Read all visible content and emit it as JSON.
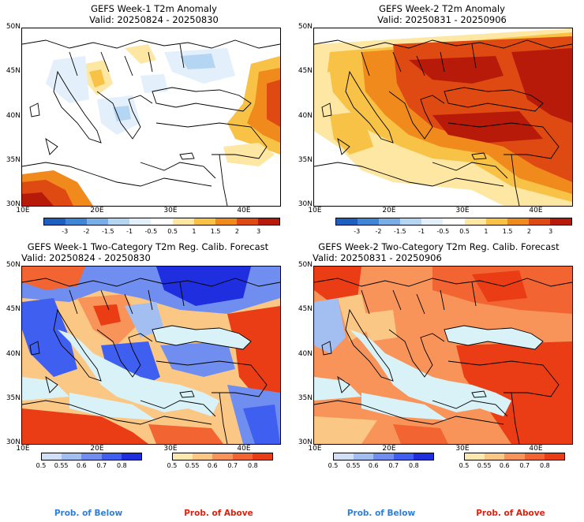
{
  "panels": [
    {
      "title": "GEFS Week-1 T2m Anomaly",
      "valid": "Valid: 20250824 - 20250830"
    },
    {
      "title": "GEFS Week-2 T2m Anomaly",
      "valid": "Valid: 20250831 - 20250906"
    },
    {
      "title": "GEFS Week-1 Two-Category T2m Reg. Calib. Forecast",
      "valid": "Valid: 20250824 - 20250830"
    },
    {
      "title": "GEFS Week-2 Two-Category T2m Reg. Calib. Forecast",
      "valid": "Valid: 20250831 - 20250906"
    }
  ],
  "axes": {
    "lat_labels": [
      "50N",
      "45N",
      "40N",
      "35N",
      "30N"
    ],
    "lon_labels": [
      "10E",
      "20E",
      "30E",
      "40E"
    ]
  },
  "anomaly_colorbar": {
    "labels": [
      "-3",
      "-2",
      "-1.5",
      "-1",
      "-0.5",
      "0.5",
      "1",
      "1.5",
      "2",
      "3"
    ],
    "colors": [
      "#1f5fbf",
      "#3f86d6",
      "#79aee6",
      "#b4d6f3",
      "#e3f0fb",
      "#ffffff",
      "#fde7a3",
      "#f7c245",
      "#f08a1c",
      "#de4a12",
      "#b81a0a"
    ]
  },
  "prob_below_colorbar": {
    "labels": [
      "0.5",
      "0.55",
      "0.6",
      "0.7",
      "0.8"
    ],
    "colors": [
      "#d2e0f7",
      "#a3bef1",
      "#6f8ef0",
      "#3f5ff0",
      "#1f2fe0"
    ]
  },
  "prob_above_colorbar": {
    "labels": [
      "0.5",
      "0.55",
      "0.6",
      "0.7",
      "0.8"
    ],
    "colors": [
      "#fde8b0",
      "#fbc785",
      "#f8945a",
      "#f26533",
      "#ea3d16"
    ]
  },
  "legend": {
    "below": "Prob. of Below",
    "above": "Prob. of Above",
    "below_color": "#2f7fd6",
    "above_color": "#e0200e"
  },
  "colors": {
    "sea_fill": "#d9f2f8",
    "land_white": "#ffffff"
  }
}
